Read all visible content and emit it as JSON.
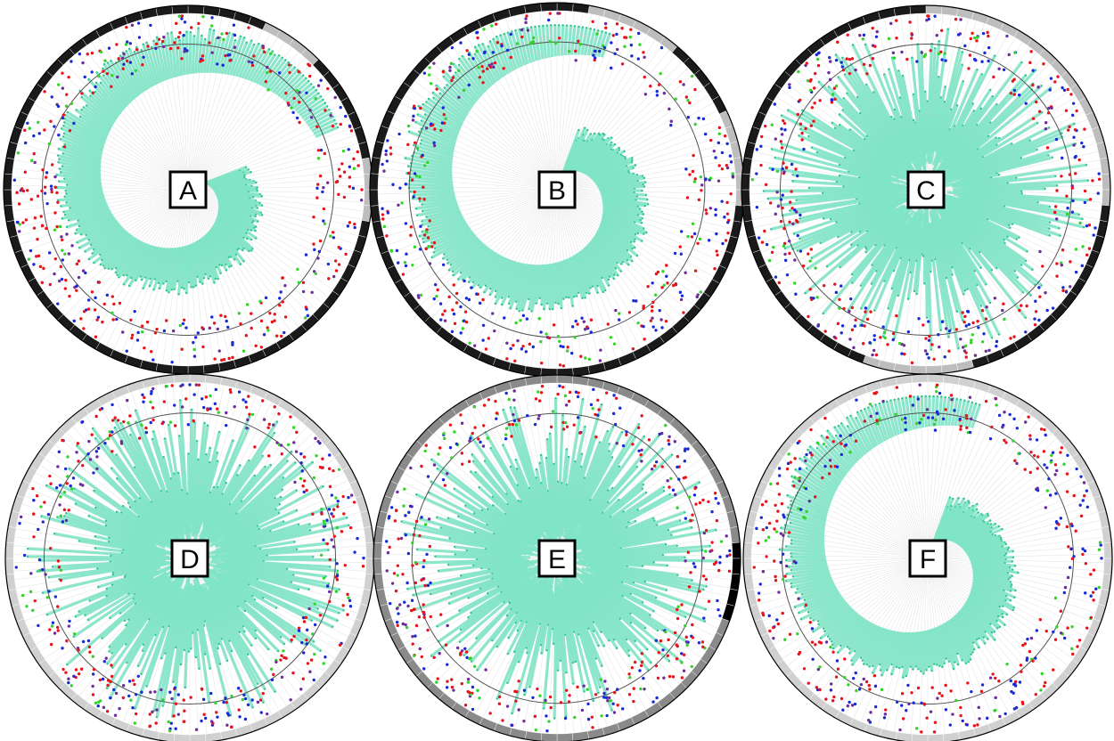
{
  "figure": {
    "panels": [
      "A",
      "B",
      "C",
      "D",
      "E",
      "F"
    ]
  },
  "chart_data": [
    {
      "type": "radial",
      "panel": "A",
      "spiral": true,
      "ring_pattern": "mostly-dark",
      "n_leaves": 260,
      "start_fraction": 0.05,
      "end_fraction": 0.92,
      "turns": 1.15
    },
    {
      "type": "radial",
      "panel": "B",
      "spiral": true,
      "ring_pattern": "dark-with-light-arc",
      "n_leaves": 260,
      "start_fraction": 0.05,
      "end_fraction": 0.9,
      "turns": 1.1
    },
    {
      "type": "radial",
      "panel": "C",
      "spiral": false,
      "ring_pattern": "mixed-dark",
      "n_leaves": 260,
      "start_fraction": 0.2,
      "end_fraction": 0.92
    },
    {
      "type": "radial",
      "panel": "D",
      "spiral": false,
      "ring_pattern": "mostly-light",
      "n_leaves": 260,
      "start_fraction": 0.2,
      "end_fraction": 0.95
    },
    {
      "type": "radial",
      "panel": "E",
      "spiral": false,
      "ring_pattern": "dark-with-black-arc",
      "n_leaves": 260,
      "start_fraction": 0.2,
      "end_fraction": 0.95
    },
    {
      "type": "radial",
      "panel": "F",
      "spiral": true,
      "ring_pattern": "mostly-light",
      "n_leaves": 260,
      "start_fraction": 0.05,
      "end_fraction": 0.92,
      "turns": 1.0
    }
  ],
  "colors": {
    "bar": "#7fe3c5",
    "bar_edge": "#55cfa8",
    "tip": "#33c490",
    "red": "#e8141b",
    "blue": "#1a2bd6",
    "green": "#33d42a",
    "purple": "#6d2c9a",
    "inner_circle": "#555555",
    "ring_dark": "#1a1a1a",
    "ring_light": "#bdbdbd",
    "spoke": "#e6e6e6"
  }
}
